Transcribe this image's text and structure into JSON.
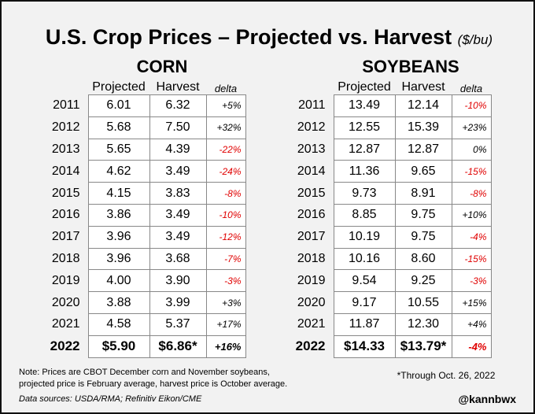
{
  "title": "U.S. Crop Prices – Projected vs. Harvest",
  "title_unit": "($/bu)",
  "column_headers": {
    "projected": "Projected",
    "harvest": "Harvest",
    "delta": "delta"
  },
  "colors": {
    "negative": "#e00000",
    "positive": "#000000",
    "background": "#f2f2f2"
  },
  "chart_data": [
    {
      "type": "table",
      "title": "CORN",
      "columns": [
        "Projected",
        "Harvest",
        "delta"
      ],
      "rows": [
        {
          "year": "2011",
          "projected": "6.01",
          "harvest": "6.32",
          "delta": "+5%"
        },
        {
          "year": "2012",
          "projected": "5.68",
          "harvest": "7.50",
          "delta": "+32%"
        },
        {
          "year": "2013",
          "projected": "5.65",
          "harvest": "4.39",
          "delta": "-22%"
        },
        {
          "year": "2014",
          "projected": "4.62",
          "harvest": "3.49",
          "delta": "-24%"
        },
        {
          "year": "2015",
          "projected": "4.15",
          "harvest": "3.83",
          "delta": "-8%"
        },
        {
          "year": "2016",
          "projected": "3.86",
          "harvest": "3.49",
          "delta": "-10%"
        },
        {
          "year": "2017",
          "projected": "3.96",
          "harvest": "3.49",
          "delta": "-12%"
        },
        {
          "year": "2018",
          "projected": "3.96",
          "harvest": "3.68",
          "delta": "-7%"
        },
        {
          "year": "2019",
          "projected": "4.00",
          "harvest": "3.90",
          "delta": "-3%"
        },
        {
          "year": "2020",
          "projected": "3.88",
          "harvest": "3.99",
          "delta": "+3%"
        },
        {
          "year": "2021",
          "projected": "4.58",
          "harvest": "5.37",
          "delta": "+17%"
        },
        {
          "year": "2022",
          "projected": "$5.90",
          "harvest": "$6.86*",
          "delta": "+16%"
        }
      ]
    },
    {
      "type": "table",
      "title": "SOYBEANS",
      "columns": [
        "Projected",
        "Harvest",
        "delta"
      ],
      "rows": [
        {
          "year": "2011",
          "projected": "13.49",
          "harvest": "12.14",
          "delta": "-10%"
        },
        {
          "year": "2012",
          "projected": "12.55",
          "harvest": "15.39",
          "delta": "+23%"
        },
        {
          "year": "2013",
          "projected": "12.87",
          "harvest": "12.87",
          "delta": "0%"
        },
        {
          "year": "2014",
          "projected": "11.36",
          "harvest": "9.65",
          "delta": "-15%"
        },
        {
          "year": "2015",
          "projected": "9.73",
          "harvest": "8.91",
          "delta": "-8%"
        },
        {
          "year": "2016",
          "projected": "8.85",
          "harvest": "9.75",
          "delta": "+10%"
        },
        {
          "year": "2017",
          "projected": "10.19",
          "harvest": "9.75",
          "delta": "-4%"
        },
        {
          "year": "2018",
          "projected": "10.16",
          "harvest": "8.60",
          "delta": "-15%"
        },
        {
          "year": "2019",
          "projected": "9.54",
          "harvest": "9.25",
          "delta": "-3%"
        },
        {
          "year": "2020",
          "projected": "9.17",
          "harvest": "10.55",
          "delta": "+15%"
        },
        {
          "year": "2021",
          "projected": "11.87",
          "harvest": "12.30",
          "delta": "+4%"
        },
        {
          "year": "2022",
          "projected": "$14.33",
          "harvest": "$13.79*",
          "delta": "-4%"
        }
      ]
    }
  ],
  "footer": {
    "note_line1": "Note: Prices are CBOT December corn and November soybeans,",
    "note_line2": "projected price is February average, harvest price is October average.",
    "sources": "Data sources: USDA/RMA; Refinitiv Eikon/CME",
    "footnote": "*Through Oct. 26, 2022",
    "handle": "@kannbwx"
  }
}
